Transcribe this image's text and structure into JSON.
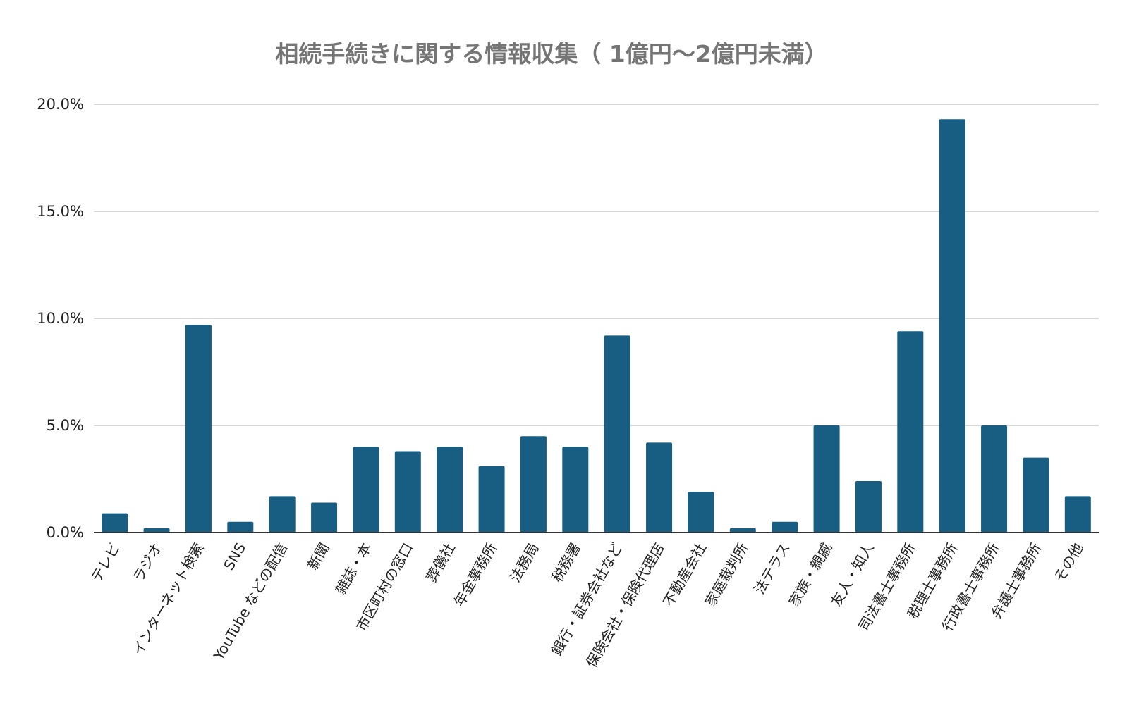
{
  "chart_data": {
    "type": "bar",
    "title": "相続手続きに関する情報収集（ 1億円〜2億円未満）",
    "xlabel": "",
    "ylabel": "",
    "ylim": [
      0,
      20
    ],
    "y_ticks": [
      "0.0%",
      "5.0%",
      "10.0%",
      "15.0%",
      "20.0%"
    ],
    "y_tick_values": [
      0,
      5,
      10,
      15,
      20
    ],
    "grid": true,
    "bar_color": "#175e82",
    "categories": [
      "テレビ",
      "ラジオ",
      "インターネット検索",
      "SNS",
      "YouTube などの配信",
      "新聞",
      "雑誌・本",
      "市区町村の窓口",
      "葬儀社",
      "年金事務所",
      "法務局",
      "税務署",
      "銀行・証券会社など",
      "保険会社・保険代理店",
      "不動産会社",
      "家庭裁判所",
      "法テラス",
      "家族・親戚",
      "友人・知人",
      "司法書士事務所",
      "税理士事務所",
      "行政書士事務所",
      "弁護士事務所",
      "その他"
    ],
    "values": [
      0.9,
      0.2,
      9.7,
      0.5,
      1.7,
      1.4,
      4.0,
      3.8,
      4.0,
      3.1,
      4.5,
      4.0,
      9.2,
      4.2,
      1.9,
      0.2,
      0.5,
      5.0,
      2.4,
      9.4,
      19.3,
      5.0,
      3.5,
      1.7
    ]
  }
}
